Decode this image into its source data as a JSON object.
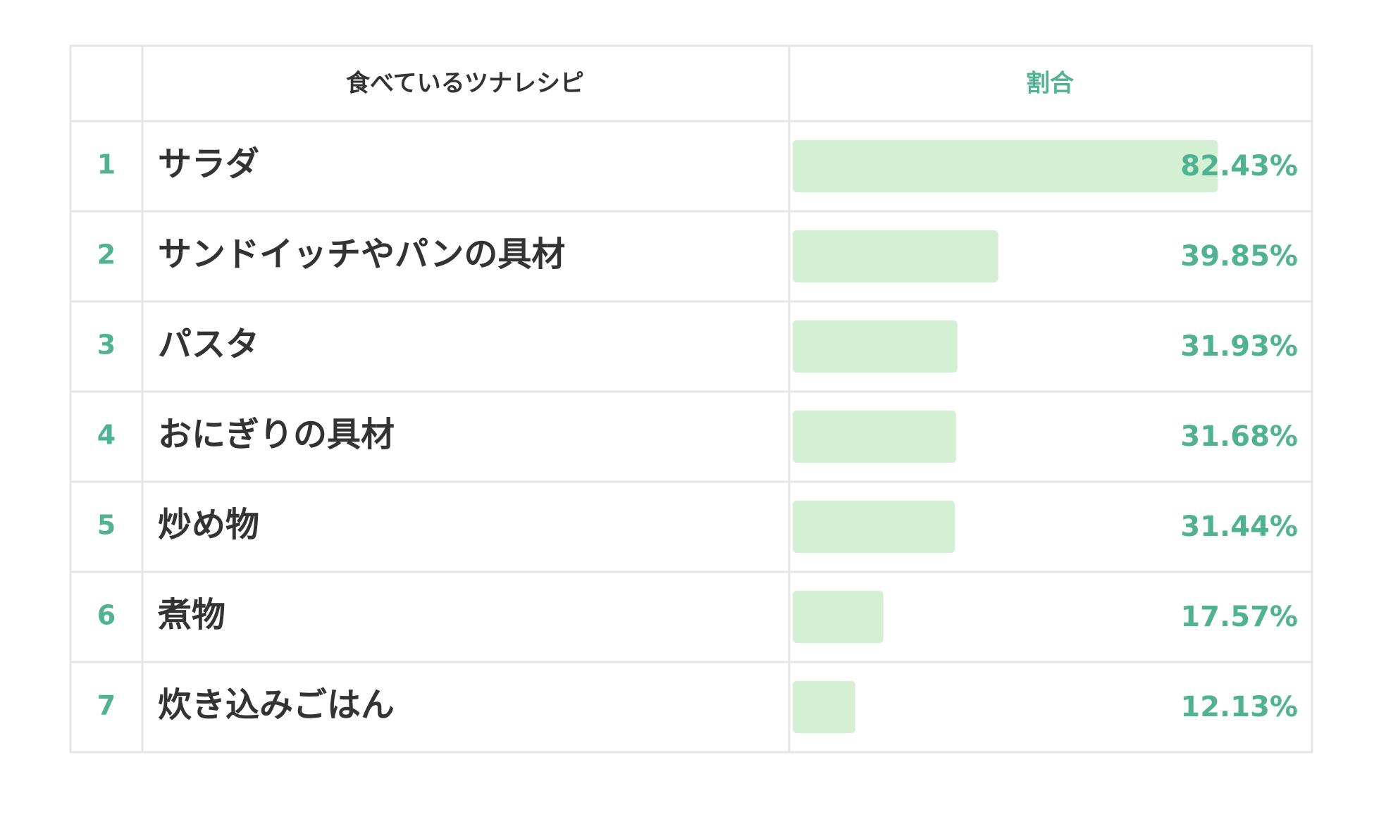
{
  "colors": {
    "accent": "#4fb393",
    "bar_fill": "#d3f0d3",
    "grid": "#e6e6e6",
    "text": "#333333"
  },
  "table": {
    "header_recipe": "食べているツナレシピ",
    "header_ratio": "割合"
  },
  "chart_data": {
    "type": "bar",
    "orientation": "horizontal",
    "value_unit": "%",
    "xlim": [
      0,
      100
    ],
    "grid": false,
    "rows": [
      {
        "rank": "1",
        "label": "サラダ",
        "value": 82.43,
        "value_label": "82.43%"
      },
      {
        "rank": "2",
        "label": "サンドイッチやパンの具材",
        "value": 39.85,
        "value_label": "39.85%"
      },
      {
        "rank": "3",
        "label": "パスタ",
        "value": 31.93,
        "value_label": "31.93%"
      },
      {
        "rank": "4",
        "label": "おにぎりの具材",
        "value": 31.68,
        "value_label": "31.68%"
      },
      {
        "rank": "5",
        "label": "炒め物",
        "value": 31.44,
        "value_label": "31.44%"
      },
      {
        "rank": "6",
        "label": "煮物",
        "value": 17.57,
        "value_label": "17.57%"
      },
      {
        "rank": "7",
        "label": "炊き込みごはん",
        "value": 12.13,
        "value_label": "12.13%"
      }
    ]
  }
}
